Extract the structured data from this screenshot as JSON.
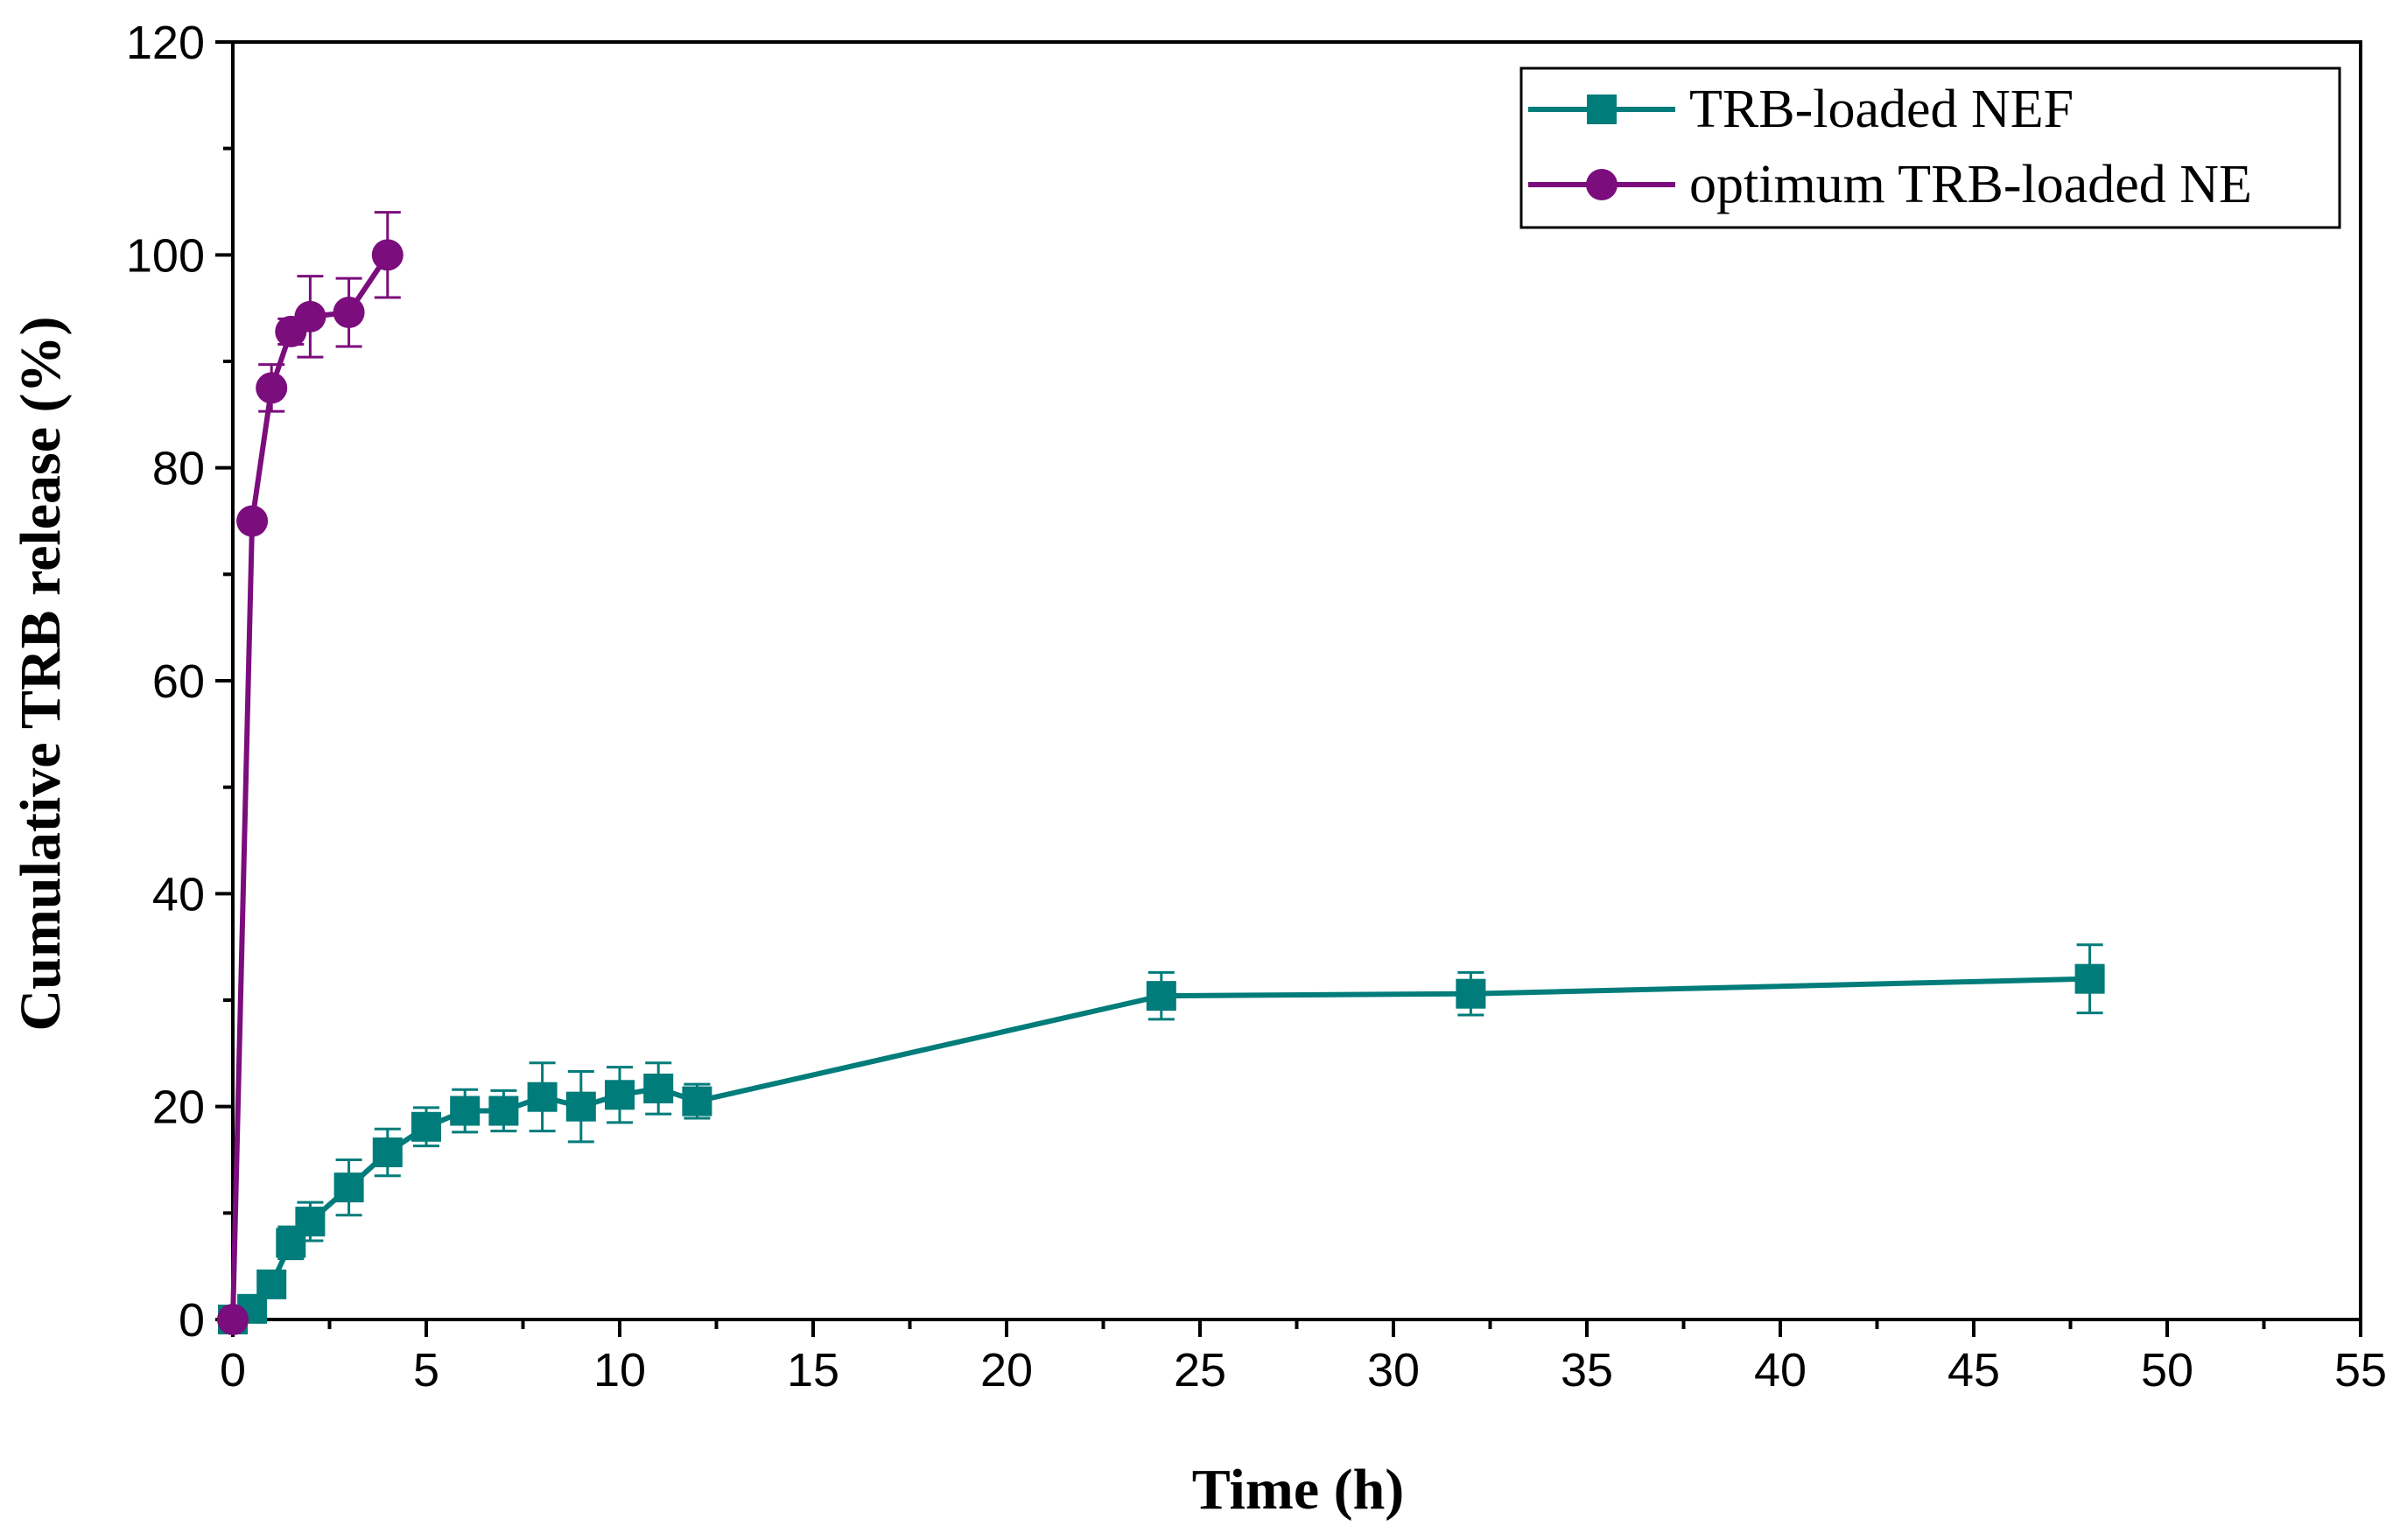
{
  "chart_data": {
    "type": "line",
    "title": "",
    "xlabel": "Time (h)",
    "ylabel": "Cumulative TRB release (%)",
    "xlim": [
      0,
      55
    ],
    "ylim": [
      0,
      120
    ],
    "xticks": [
      0,
      5,
      10,
      15,
      20,
      25,
      30,
      35,
      40,
      45,
      50,
      55
    ],
    "yticks": [
      0,
      20,
      40,
      60,
      80,
      100,
      120
    ],
    "xtick_labels": [
      "0",
      "5",
      "10",
      "15",
      "20",
      "25",
      "30",
      "35",
      "40",
      "45",
      "50",
      "55"
    ],
    "ytick_labels": [
      "0",
      "20",
      "40",
      "60",
      "80",
      "100",
      "120"
    ],
    "grid": false,
    "legend_position": "top-right",
    "series": [
      {
        "name": "TRB-loaded NEF",
        "marker": "square",
        "color": "#007c7a",
        "x": [
          0,
          0.5,
          1,
          1.5,
          2,
          3,
          4,
          5,
          6,
          7,
          8,
          9,
          10,
          11,
          12,
          24,
          32,
          48
        ],
        "y": [
          0,
          1.0,
          3.3,
          7.2,
          9.2,
          12.4,
          15.7,
          18.1,
          19.6,
          19.6,
          20.9,
          20.0,
          21.1,
          21.7,
          20.5,
          30.4,
          30.6,
          32.0
        ],
        "err": [
          0,
          0.5,
          1.0,
          1.5,
          1.8,
          2.6,
          2.2,
          1.8,
          2.0,
          1.9,
          3.2,
          3.3,
          2.6,
          2.4,
          1.6,
          2.2,
          2.0,
          3.2
        ]
      },
      {
        "name": "optimum TRB-loaded NE",
        "marker": "circle",
        "color": "#7b0d7d",
        "x": [
          0,
          0.5,
          1,
          1.5,
          2,
          3,
          4
        ],
        "y": [
          0,
          75.0,
          87.5,
          92.8,
          94.2,
          94.6,
          100.0
        ],
        "err": [
          0,
          0.6,
          2.2,
          1.2,
          3.8,
          3.2,
          4.0
        ]
      }
    ]
  }
}
